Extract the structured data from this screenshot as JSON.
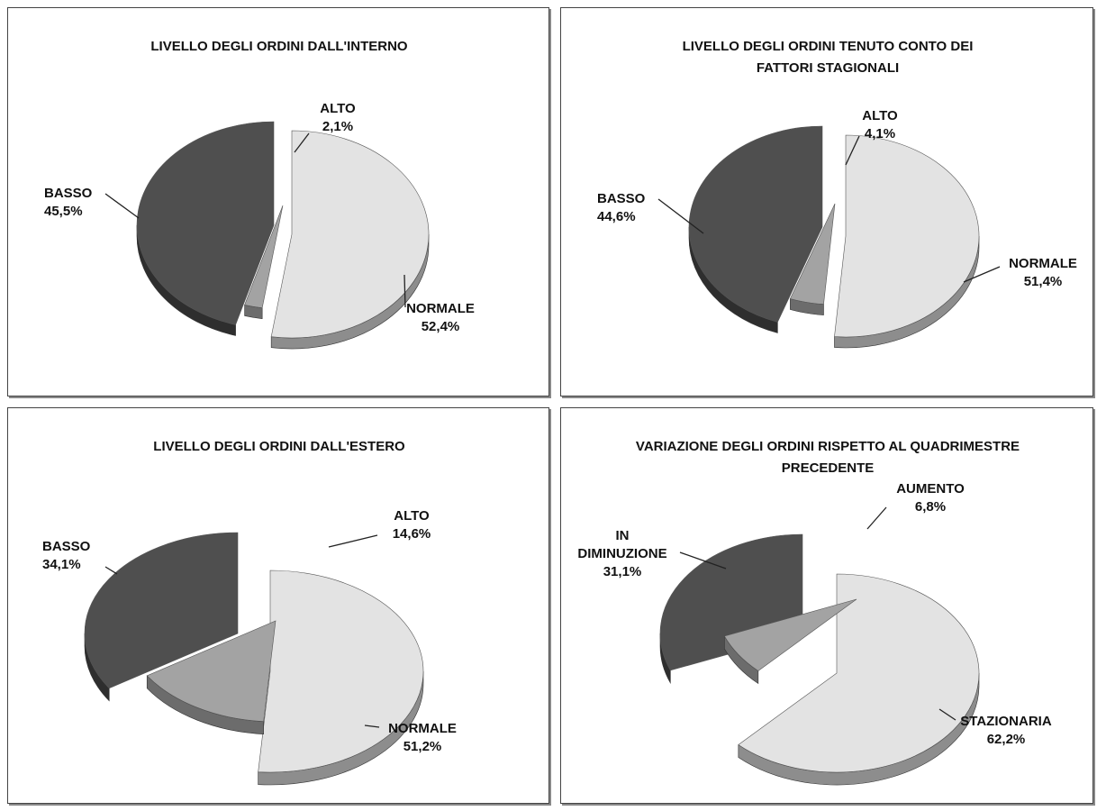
{
  "chart_data": [
    {
      "type": "pie",
      "title": [
        "LIVELLO DEGLI ORDINI DALL'INTERNO"
      ],
      "slices": [
        {
          "name": "BASSO",
          "value": 45.5,
          "label": "45,5%"
        },
        {
          "name": "NORMALE",
          "value": 52.4,
          "label": "52,4%"
        },
        {
          "name": "ALTO",
          "value": 2.1,
          "label": "2,1%"
        }
      ]
    },
    {
      "type": "pie",
      "title": [
        "LIVELLO DEGLI ORDINI TENUTO CONTO DEI",
        "FATTORI STAGIONALI"
      ],
      "slices": [
        {
          "name": "BASSO",
          "value": 44.6,
          "label": "44,6%"
        },
        {
          "name": "NORMALE",
          "value": 51.4,
          "label": "51,4%"
        },
        {
          "name": "ALTO",
          "value": 4.1,
          "label": "4,1%"
        }
      ]
    },
    {
      "type": "pie",
      "title": [
        "LIVELLO DEGLI ORDINI DALL'ESTERO"
      ],
      "slices": [
        {
          "name": "BASSO",
          "value": 34.1,
          "label": "34,1%"
        },
        {
          "name": "NORMALE",
          "value": 51.2,
          "label": "51,2%"
        },
        {
          "name": "ALTO",
          "value": 14.6,
          "label": "14,6%"
        }
      ]
    },
    {
      "type": "pie",
      "title": [
        "VARIAZIONE DEGLI ORDINI RISPETTO AL QUADRIMESTRE",
        "PRECEDENTE"
      ],
      "slices": [
        {
          "name": "IN\nDIMINUZIONE",
          "value": 31.1,
          "label": "31,1%"
        },
        {
          "name": "STAZIONARIA",
          "value": 62.2,
          "label": "62,2%"
        },
        {
          "name": "AUMENTO",
          "value": 6.8,
          "label": "6,8%"
        }
      ]
    }
  ],
  "colors": {
    "low": "#4f4f4f",
    "normal": "#e3e3e3",
    "high": "#a3a3a3"
  }
}
